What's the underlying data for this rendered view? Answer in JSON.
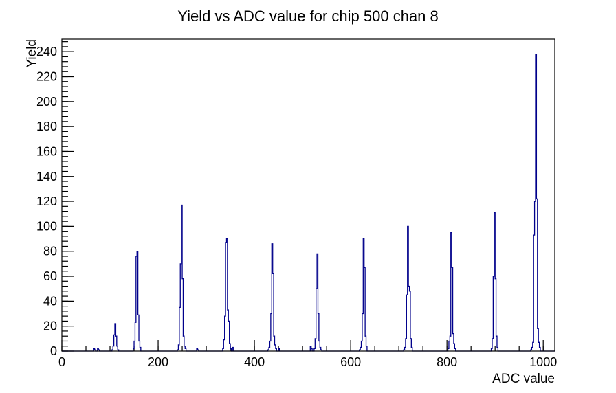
{
  "chart_data": {
    "type": "bar",
    "subtype": "step-histogram",
    "title": "Yield vs ADC value for chip 500 chan 8",
    "xlabel": "ADC value",
    "ylabel": "Yield",
    "xlim": [
      0,
      1024
    ],
    "ylim": [
      0,
      250
    ],
    "grid": false,
    "legend": "none",
    "line_color": "#00008b",
    "axis_color": "#000000",
    "background_color": "#ffffff",
    "bin_width": 2,
    "x_ticks": {
      "values": [
        0,
        200,
        400,
        600,
        800,
        1000
      ],
      "labels": [
        "0",
        "200",
        "400",
        "600",
        "800",
        "1000"
      ],
      "minor_step": 50
    },
    "y_ticks": {
      "values": [
        0,
        20,
        40,
        60,
        80,
        100,
        120,
        140,
        160,
        180,
        200,
        220,
        240
      ],
      "labels": [
        "0",
        "20",
        "40",
        "60",
        "80",
        "100",
        "120",
        "140",
        "160",
        "180",
        "200",
        "220",
        "240"
      ],
      "minor_step": 4
    },
    "peaks_summary": [
      {
        "adc": 110,
        "yield": 22
      },
      {
        "adc": 156,
        "yield": 80
      },
      {
        "adc": 248,
        "yield": 117
      },
      {
        "adc": 342,
        "yield": 90
      },
      {
        "adc": 436,
        "yield": 86
      },
      {
        "adc": 530,
        "yield": 78
      },
      {
        "adc": 626,
        "yield": 90
      },
      {
        "adc": 718,
        "yield": 100
      },
      {
        "adc": 808,
        "yield": 95
      },
      {
        "adc": 898,
        "yield": 111
      },
      {
        "adc": 984,
        "yield": 238
      }
    ],
    "bins": [
      [
        66,
        2
      ],
      [
        68,
        1
      ],
      [
        74,
        2
      ],
      [
        76,
        1
      ],
      [
        104,
        1
      ],
      [
        106,
        4
      ],
      [
        108,
        13
      ],
      [
        110,
        22
      ],
      [
        112,
        12
      ],
      [
        114,
        4
      ],
      [
        116,
        1
      ],
      [
        148,
        2
      ],
      [
        150,
        8
      ],
      [
        152,
        23
      ],
      [
        154,
        76
      ],
      [
        156,
        80
      ],
      [
        158,
        29
      ],
      [
        160,
        8
      ],
      [
        162,
        3
      ],
      [
        240,
        1
      ],
      [
        242,
        5
      ],
      [
        244,
        35
      ],
      [
        246,
        70
      ],
      [
        248,
        117
      ],
      [
        250,
        58
      ],
      [
        252,
        12
      ],
      [
        254,
        4
      ],
      [
        256,
        2
      ],
      [
        280,
        2
      ],
      [
        282,
        1
      ],
      [
        334,
        2
      ],
      [
        336,
        9
      ],
      [
        338,
        28
      ],
      [
        340,
        87
      ],
      [
        342,
        90
      ],
      [
        344,
        33
      ],
      [
        346,
        24
      ],
      [
        348,
        6
      ],
      [
        350,
        2
      ],
      [
        354,
        3
      ],
      [
        428,
        1
      ],
      [
        430,
        3
      ],
      [
        432,
        8
      ],
      [
        434,
        30
      ],
      [
        436,
        86
      ],
      [
        438,
        62
      ],
      [
        440,
        12
      ],
      [
        442,
        5
      ],
      [
        444,
        2
      ],
      [
        450,
        2
      ],
      [
        516,
        4
      ],
      [
        518,
        2
      ],
      [
        524,
        2
      ],
      [
        526,
        10
      ],
      [
        528,
        50
      ],
      [
        530,
        78
      ],
      [
        532,
        30
      ],
      [
        534,
        8
      ],
      [
        536,
        3
      ],
      [
        538,
        1
      ],
      [
        618,
        1
      ],
      [
        620,
        3
      ],
      [
        622,
        8
      ],
      [
        624,
        30
      ],
      [
        626,
        90
      ],
      [
        628,
        67
      ],
      [
        630,
        12
      ],
      [
        632,
        4
      ],
      [
        710,
        1
      ],
      [
        712,
        3
      ],
      [
        714,
        10
      ],
      [
        716,
        45
      ],
      [
        718,
        100
      ],
      [
        720,
        52
      ],
      [
        722,
        48
      ],
      [
        724,
        10
      ],
      [
        726,
        3
      ],
      [
        802,
        2
      ],
      [
        804,
        8
      ],
      [
        806,
        12
      ],
      [
        808,
        95
      ],
      [
        810,
        67
      ],
      [
        812,
        14
      ],
      [
        814,
        6
      ],
      [
        816,
        2
      ],
      [
        892,
        2
      ],
      [
        894,
        10
      ],
      [
        896,
        60
      ],
      [
        898,
        111
      ],
      [
        900,
        58
      ],
      [
        902,
        12
      ],
      [
        904,
        3
      ],
      [
        974,
        1
      ],
      [
        976,
        3
      ],
      [
        978,
        7
      ],
      [
        980,
        93
      ],
      [
        982,
        120
      ],
      [
        984,
        238
      ],
      [
        986,
        122
      ],
      [
        988,
        18
      ],
      [
        990,
        7
      ],
      [
        992,
        3
      ]
    ]
  }
}
